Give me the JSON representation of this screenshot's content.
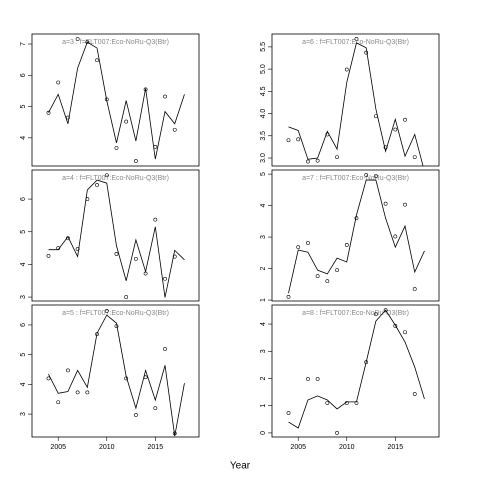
{
  "xlabel": "Year",
  "chart_data": [
    {
      "type": "line",
      "title": "a=3 : f=FLT007:Eco-NoRu-Q3(Btr)",
      "x": [
        2004,
        2005,
        2006,
        2007,
        2008,
        2009,
        2010,
        2011,
        2012,
        2013,
        2014,
        2015,
        2016,
        2017,
        2018
      ],
      "values": [
        4.81,
        5.39,
        4.45,
        6.23,
        7.06,
        6.87,
        5.19,
        3.84,
        5.19,
        3.9,
        5.58,
        3.32,
        4.84,
        4.45,
        5.39
      ],
      "points": [
        4.8,
        5.77,
        4.65,
        7.16,
        7.06,
        6.48,
        5.23,
        3.68,
        4.52,
        3.26,
        5.55,
        3.71,
        5.32,
        4.26,
        null
      ],
      "color": "#000000",
      "xlim": [
        2002.3,
        2019.5
      ],
      "ylim": [
        3.1,
        7.32
      ],
      "yticks": [
        4,
        5,
        6,
        7
      ]
    },
    {
      "type": "line",
      "title": "a=6 : f=FLT007:Eco-NoRu-Q3(Btr)",
      "x": [
        2004,
        2005,
        2006,
        2007,
        2008,
        2009,
        2010,
        2011,
        2012,
        2013,
        2014,
        2015,
        2016,
        2017,
        2018
      ],
      "values": [
        3.7,
        3.62,
        2.97,
        3.0,
        3.6,
        3.2,
        4.7,
        5.59,
        5.48,
        4.1,
        3.15,
        3.87,
        3.04,
        3.53,
        2.7
      ],
      "points": [
        3.4,
        3.42,
        2.92,
        2.94,
        3.53,
        3.02,
        4.99,
        5.68,
        5.37,
        3.94,
        3.24,
        3.64,
        3.86,
        3.02,
        null
      ],
      "color": "#000000",
      "xlim": [
        2002.3,
        2019.5
      ],
      "ylim": [
        2.82,
        5.79
      ],
      "yticks": [
        {
          "value": 3,
          "label": "3.0"
        },
        3.5,
        {
          "value": 4,
          "label": "4.0"
        },
        4.5,
        {
          "value": 5,
          "label": "5.0"
        },
        5.5
      ]
    },
    {
      "type": "line",
      "title": "a=4 : f=FLT007:Eco-NoRu-Q3(Btr)",
      "x": [
        2004,
        2005,
        2006,
        2007,
        2008,
        2009,
        2010,
        2011,
        2012,
        2013,
        2014,
        2015,
        2016,
        2017,
        2018
      ],
      "values": [
        4.45,
        4.45,
        4.85,
        4.24,
        6.28,
        6.58,
        6.49,
        4.57,
        3.5,
        4.75,
        3.78,
        5.15,
        2.99,
        4.43,
        4.14
      ],
      "points": [
        4.26,
        4.5,
        4.8,
        4.47,
        6.0,
        6.43,
        6.73,
        4.32,
        3.0,
        4.17,
        3.72,
        5.37,
        3.56,
        4.24,
        null
      ],
      "color": "#000000",
      "xlim": [
        2002.3,
        2019.5
      ],
      "ylim": [
        2.88,
        6.89
      ],
      "yticks": [
        3,
        4,
        5,
        6
      ]
    },
    {
      "type": "line",
      "title": "a=7 : f=FLT007:Eco-NoRu-Q3(Btr)",
      "x": [
        2004,
        2005,
        2006,
        2007,
        2008,
        2009,
        2010,
        2011,
        2012,
        2013,
        2014,
        2015,
        2016,
        2017,
        2018
      ],
      "values": [
        1.22,
        2.59,
        2.52,
        1.95,
        1.83,
        2.33,
        2.21,
        3.7,
        4.81,
        4.81,
        3.6,
        2.68,
        3.35,
        1.89,
        2.56
      ],
      "points": [
        1.1,
        2.68,
        2.81,
        1.76,
        1.6,
        1.95,
        2.75,
        3.6,
        4.97,
        4.94,
        4.06,
        3.02,
        4.03,
        1.35,
        null
      ],
      "color": "#000000",
      "xlim": [
        2002.3,
        2019.5
      ],
      "ylim": [
        0.97,
        5.13
      ],
      "yticks": [
        1,
        2,
        3,
        4,
        5
      ]
    },
    {
      "type": "line",
      "title": "a=5 : f=FLT007:Eco-NoRu-Q3(Btr)",
      "x": [
        2004,
        2005,
        2006,
        2007,
        2008,
        2009,
        2010,
        2011,
        2012,
        2013,
        2014,
        2015,
        2016,
        2017,
        2018
      ],
      "values": [
        4.34,
        3.7,
        3.76,
        4.47,
        3.9,
        5.72,
        6.33,
        6.06,
        4.27,
        3.2,
        4.47,
        3.47,
        4.64,
        2.26,
        4.04
      ],
      "points": [
        4.2,
        3.4,
        4.47,
        3.73,
        3.73,
        5.69,
        6.47,
        5.96,
        4.2,
        2.97,
        4.24,
        3.2,
        5.19,
        2.35,
        null
      ],
      "color": "#000000",
      "xlim": [
        2002.3,
        2019.5
      ],
      "ylim": [
        2.23,
        6.67
      ],
      "yticks": [
        3,
        4,
        5,
        6
      ],
      "xticks": [
        2005,
        2010,
        2015
      ]
    },
    {
      "type": "line",
      "title": "a=8 : f=FLT007:Eco-NoRu-Q3(Btr)",
      "x": [
        2004,
        2005,
        2006,
        2007,
        2008,
        2009,
        2010,
        2011,
        2012,
        2013,
        2014,
        2015,
        2016,
        2017,
        2018
      ],
      "values": [
        0.4,
        0.18,
        1.21,
        1.36,
        1.21,
        0.88,
        1.14,
        1.14,
        2.6,
        4.11,
        4.51,
        3.96,
        3.34,
        2.42,
        1.25
      ],
      "points": [
        0.73,
        null,
        1.98,
        1.98,
        1.1,
        0,
        1.1,
        1.1,
        2.6,
        4.36,
        4.51,
        3.93,
        3.7,
        1.43,
        null
      ],
      "color": "#000000",
      "xlim": [
        2002.3,
        2019.5
      ],
      "ylim": [
        -0.15,
        4.7
      ],
      "yticks": [
        0,
        1,
        2,
        3,
        4
      ],
      "xticks": [
        2005,
        2010,
        2015
      ]
    }
  ]
}
